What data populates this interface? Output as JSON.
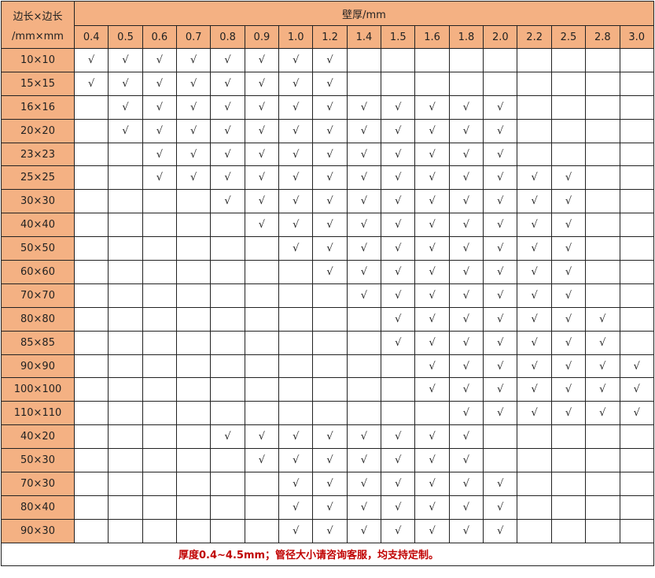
{
  "header": {
    "corner_line1": "边长×边长",
    "corner_line2": "/mm×mm",
    "thickness_title": "壁厚/mm",
    "thicknesses": [
      "0.4",
      "0.5",
      "0.6",
      "0.7",
      "0.8",
      "0.9",
      "1.0",
      "1.2",
      "1.4",
      "1.5",
      "1.6",
      "1.8",
      "2.0",
      "2.2",
      "2.5",
      "2.8",
      "3.0"
    ]
  },
  "check_symbol": "√",
  "header_color": "#f4b183",
  "footer_color": "#c00000",
  "rows": [
    {
      "size": "10×10",
      "from": "0.4",
      "to": "1.2"
    },
    {
      "size": "15×15",
      "from": "0.4",
      "to": "1.2"
    },
    {
      "size": "16×16",
      "from": "0.5",
      "to": "2.0"
    },
    {
      "size": "20×20",
      "from": "0.5",
      "to": "2.0"
    },
    {
      "size": "23×23",
      "from": "0.6",
      "to": "2.0"
    },
    {
      "size": "25×25",
      "from": "0.6",
      "to": "2.5"
    },
    {
      "size": "30×30",
      "from": "0.8",
      "to": "2.5"
    },
    {
      "size": "40×40",
      "from": "0.9",
      "to": "2.5"
    },
    {
      "size": "50×50",
      "from": "1.0",
      "to": "2.5"
    },
    {
      "size": "60×60",
      "from": "1.2",
      "to": "2.5"
    },
    {
      "size": "70×70",
      "from": "1.4",
      "to": "2.5"
    },
    {
      "size": "80×80",
      "from": "1.5",
      "to": "2.8"
    },
    {
      "size": "85×85",
      "from": "1.5",
      "to": "2.8"
    },
    {
      "size": "90×90",
      "from": "1.6",
      "to": "3.0"
    },
    {
      "size": "100×100",
      "from": "1.6",
      "to": "3.0"
    },
    {
      "size": "110×110",
      "from": "1.8",
      "to": "3.0"
    },
    {
      "size": "40×20",
      "from": "0.8",
      "to": "1.8"
    },
    {
      "size": "50×30",
      "from": "0.9",
      "to": "1.8"
    },
    {
      "size": "70×30",
      "from": "1.0",
      "to": "2.0"
    },
    {
      "size": "80×40",
      "from": "1.0",
      "to": "2.0"
    },
    {
      "size": "90×30",
      "from": "1.0",
      "to": "2.0"
    }
  ],
  "footer": "厚度0.4~4.5mm；管径大小请咨询客服，均支持定制。"
}
